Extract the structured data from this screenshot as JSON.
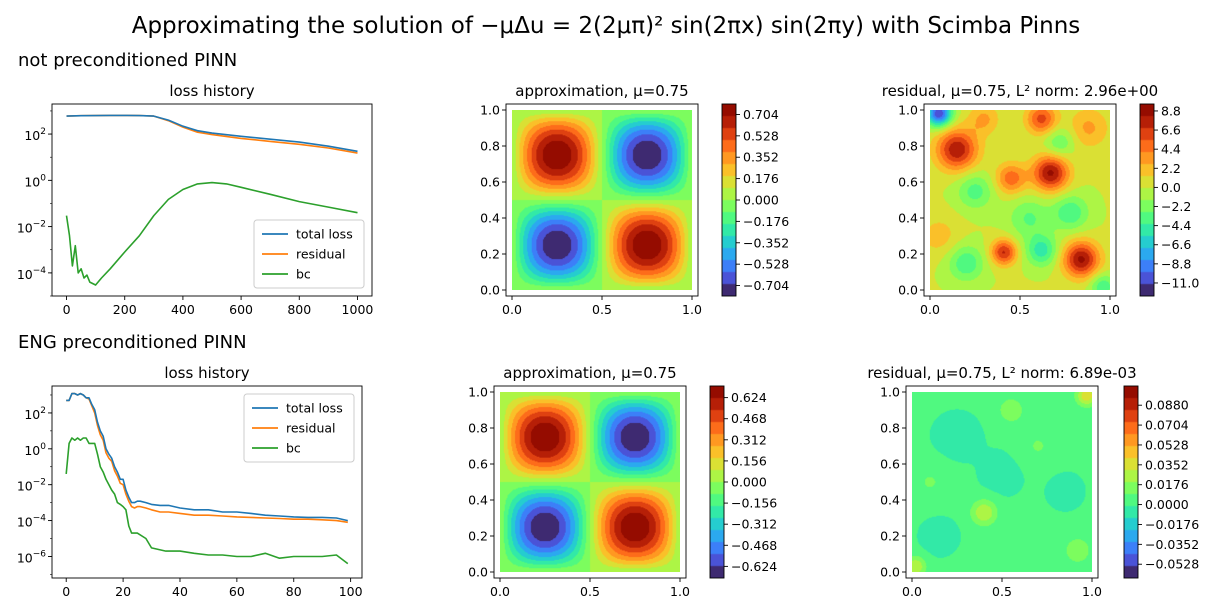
{
  "suptitle": "Approximating the solution of −μΔu = 2(2μπ)² sin(2πx) sin(2πy) with Scimba Pinns",
  "rows": [
    {
      "label": "not preconditioned PINN"
    },
    {
      "label": "ENG preconditioned PINN"
    }
  ],
  "colors": {
    "total_loss": "#1f77b4",
    "residual": "#ff7f0e",
    "bc": "#2ca02c"
  },
  "chart_data": [
    {
      "type": "line",
      "title": "loss history",
      "yscale": "log",
      "xlim": [
        -50,
        1050
      ],
      "ylim_exp": [
        -5,
        3.3
      ],
      "xticks": [
        0,
        200,
        400,
        600,
        800,
        1000
      ],
      "yticks_exp": [
        -4,
        -2,
        0,
        2
      ],
      "legend": "lower-right",
      "series": [
        {
          "name": "total loss",
          "x": [
            0,
            50,
            100,
            150,
            200,
            250,
            300,
            350,
            400,
            450,
            500,
            600,
            700,
            800,
            900,
            1000
          ],
          "y": [
            600,
            620,
            630,
            640,
            640,
            630,
            600,
            400,
            220,
            140,
            110,
            80,
            60,
            45,
            30,
            18
          ]
        },
        {
          "name": "residual",
          "x": [
            0,
            50,
            100,
            150,
            200,
            250,
            300,
            350,
            400,
            450,
            500,
            600,
            700,
            800,
            900,
            1000
          ],
          "y": [
            600,
            620,
            630,
            640,
            640,
            630,
            600,
            380,
            200,
            120,
            95,
            65,
            48,
            36,
            25,
            15
          ]
        },
        {
          "name": "bc",
          "x": [
            0,
            10,
            20,
            30,
            40,
            50,
            60,
            70,
            80,
            100,
            120,
            150,
            200,
            250,
            300,
            350,
            400,
            450,
            500,
            550,
            600,
            700,
            800,
            900,
            1000
          ],
          "y": [
            0.03,
            0.004,
            0.0002,
            0.0015,
            0.0001,
            0.00015,
            6e-05,
            8e-05,
            4e-05,
            3e-05,
            6e-05,
            0.00015,
            0.0008,
            0.004,
            0.03,
            0.15,
            0.4,
            0.7,
            0.8,
            0.7,
            0.5,
            0.25,
            0.12,
            0.07,
            0.04
          ]
        }
      ]
    },
    {
      "type": "heatmap",
      "title": "approximation, μ=0.75",
      "xlim": [
        0,
        1
      ],
      "ylim": [
        0,
        1
      ],
      "xticks": [
        "0.0",
        "0.5",
        "1.0"
      ],
      "yticks": [
        "0.0",
        "0.2",
        "0.4",
        "0.6",
        "0.8",
        "1.0"
      ],
      "amplitude": 0.79,
      "colorbar": {
        "min": -0.79,
        "max": 0.79,
        "ticks": [
          0.704,
          0.528,
          0.352,
          0.176,
          0.0,
          -0.176,
          -0.352,
          -0.528,
          -0.704
        ],
        "labels": [
          "0.704",
          "0.528",
          "0.352",
          "0.176",
          "0.000",
          "−0.176",
          "−0.352",
          "−0.528",
          "−0.704"
        ]
      }
    },
    {
      "type": "heatmap",
      "title": "residual, μ=0.75, L² norm: 2.96e+00",
      "xlim": [
        0,
        1
      ],
      "ylim": [
        0,
        1
      ],
      "xticks": [
        "0.0",
        "0.5",
        "1.0"
      ],
      "yticks": [
        "0.0",
        "0.2",
        "0.4",
        "0.6",
        "0.8",
        "1.0"
      ],
      "blobs": [
        [
          0.15,
          0.78,
          8.0,
          0.08
        ],
        [
          0.67,
          0.65,
          8.5,
          0.07
        ],
        [
          0.84,
          0.17,
          8.5,
          0.07
        ],
        [
          0.41,
          0.21,
          7.0,
          0.05
        ],
        [
          0.45,
          0.62,
          5.0,
          0.06
        ],
        [
          0.62,
          0.95,
          6.0,
          0.06
        ],
        [
          0.88,
          0.9,
          3.0,
          0.08
        ],
        [
          0.3,
          0.95,
          3.0,
          0.06
        ],
        [
          0.05,
          0.3,
          2.0,
          0.08
        ],
        [
          0.55,
          0.4,
          -3.0,
          0.08
        ],
        [
          0.25,
          0.55,
          -3.5,
          0.07
        ],
        [
          0.2,
          0.15,
          -4.0,
          0.07
        ],
        [
          0.62,
          0.22,
          -5.0,
          0.06
        ],
        [
          0.78,
          0.43,
          -4.0,
          0.07
        ],
        [
          0.72,
          0.82,
          -3.0,
          0.06
        ],
        [
          0.05,
          0.98,
          -11.0,
          0.05
        ],
        [
          0.96,
          0.02,
          -4.0,
          0.05
        ]
      ],
      "colorbar": {
        "min": -12.5,
        "max": 9.6,
        "ticks": [
          8.8,
          6.6,
          4.4,
          2.2,
          0.0,
          -2.2,
          -4.4,
          -6.6,
          -8.8,
          -11.0
        ],
        "labels": [
          "8.8",
          "6.6",
          "4.4",
          "2.2",
          "0.0",
          "−2.2",
          "−4.4",
          "−6.6",
          "−8.8",
          "−11.0"
        ]
      }
    },
    {
      "type": "line",
      "title": "loss history",
      "yscale": "log",
      "xlim": [
        -5,
        104
      ],
      "ylim_exp": [
        -7.2,
        3.5
      ],
      "xticks": [
        0,
        20,
        40,
        60,
        80,
        100
      ],
      "yticks_exp": [
        -6,
        -4,
        -2,
        0,
        2
      ],
      "legend": "upper-right",
      "series": [
        {
          "name": "total loss",
          "x": [
            0,
            1,
            2,
            3,
            4,
            5,
            6,
            7,
            8,
            9,
            10,
            11,
            12,
            13,
            14,
            15,
            16,
            17,
            18,
            19,
            20,
            21,
            22,
            23,
            24,
            25,
            26,
            28,
            30,
            33,
            36,
            40,
            45,
            50,
            55,
            60,
            65,
            70,
            75,
            80,
            85,
            90,
            95,
            99
          ],
          "y": [
            500,
            500,
            1200,
            1200,
            1000,
            1200,
            1000,
            700,
            700,
            300,
            150,
            30,
            10,
            5,
            1,
            0.5,
            0.3,
            0.1,
            0.05,
            0.02,
            0.02,
            0.005,
            0.002,
            0.001,
            0.001,
            0.0012,
            0.0012,
            0.001,
            0.0008,
            0.0007,
            0.0007,
            0.0005,
            0.0004,
            0.0004,
            0.0003,
            0.0003,
            0.00025,
            0.0002,
            0.00018,
            0.00016,
            0.00015,
            0.00015,
            0.00014,
            0.0001
          ]
        },
        {
          "name": "residual",
          "x": [
            0,
            1,
            2,
            3,
            4,
            5,
            6,
            7,
            8,
            9,
            10,
            11,
            12,
            13,
            14,
            15,
            16,
            17,
            18,
            19,
            20,
            21,
            22,
            23,
            24,
            25,
            26,
            28,
            30,
            33,
            36,
            40,
            45,
            50,
            55,
            60,
            65,
            70,
            75,
            80,
            85,
            90,
            95,
            99
          ],
          "y": [
            500,
            500,
            1200,
            1200,
            1000,
            1200,
            1000,
            700,
            600,
            250,
            100,
            20,
            6,
            3,
            0.6,
            0.3,
            0.2,
            0.06,
            0.03,
            0.012,
            0.01,
            0.003,
            0.0012,
            0.0006,
            0.0005,
            0.0006,
            0.0006,
            0.0005,
            0.0004,
            0.0003,
            0.0003,
            0.00025,
            0.0002,
            0.0002,
            0.00018,
            0.00016,
            0.00015,
            0.00014,
            0.00013,
            0.00012,
            0.00012,
            0.00011,
            0.0001,
            8e-05
          ]
        },
        {
          "name": "bc",
          "x": [
            0,
            1,
            2,
            3,
            4,
            5,
            6,
            7,
            8,
            9,
            10,
            11,
            12,
            13,
            14,
            15,
            16,
            17,
            18,
            19,
            20,
            21,
            22,
            23,
            25,
            28,
            30,
            35,
            40,
            45,
            50,
            55,
            60,
            65,
            70,
            75,
            80,
            85,
            90,
            95,
            99
          ],
          "y": [
            0.04,
            2,
            4,
            3,
            4,
            3,
            4,
            4,
            2,
            2,
            2,
            0.5,
            0.1,
            0.05,
            0.02,
            0.01,
            0.005,
            0.003,
            0.001,
            0.0008,
            0.0006,
            0.0004,
            5e-05,
            2e-05,
            2e-05,
            1e-05,
            3e-06,
            2e-06,
            2e-06,
            1.5e-06,
            1.2e-06,
            1.2e-06,
            1e-06,
            1e-06,
            1.5e-06,
            8e-07,
            1e-06,
            1e-06,
            1e-06,
            1.2e-06,
            4e-07
          ]
        }
      ]
    },
    {
      "type": "heatmap",
      "title": "approximation, μ=0.75",
      "xlim": [
        0,
        1
      ],
      "ylim": [
        0,
        1
      ],
      "xticks": [
        "0.0",
        "0.5",
        "1.0"
      ],
      "yticks": [
        "0.0",
        "0.2",
        "0.4",
        "0.6",
        "0.8",
        "1.0"
      ],
      "amplitude": 0.71,
      "colorbar": {
        "min": -0.71,
        "max": 0.71,
        "ticks": [
          0.624,
          0.468,
          0.312,
          0.156,
          0.0,
          -0.156,
          -0.312,
          -0.468,
          -0.624
        ],
        "labels": [
          "0.624",
          "0.468",
          "0.312",
          "0.156",
          "0.000",
          "−0.156",
          "−0.312",
          "−0.468",
          "−0.624"
        ]
      }
    },
    {
      "type": "heatmap",
      "title": "residual, μ=0.75, L² norm: 6.89e-03",
      "xlim": [
        0,
        1
      ],
      "ylim": [
        0,
        1
      ],
      "xticks": [
        "0.0",
        "0.5",
        "1.0"
      ],
      "yticks": [
        "0.0",
        "0.2",
        "0.4",
        "0.6",
        "0.8",
        "1.0"
      ],
      "blobs": [
        [
          0.4,
          0.33,
          0.03,
          0.05
        ],
        [
          0.92,
          0.12,
          0.02,
          0.05
        ],
        [
          0.1,
          0.5,
          0.01,
          0.08
        ],
        [
          0.7,
          0.7,
          0.01,
          0.08
        ],
        [
          0.55,
          0.9,
          0.015,
          0.06
        ],
        [
          0.25,
          0.75,
          -0.008,
          0.08
        ],
        [
          0.85,
          0.45,
          -0.008,
          0.06
        ],
        [
          0.5,
          0.55,
          -0.006,
          0.08
        ],
        [
          0.15,
          0.2,
          -0.01,
          0.06
        ],
        [
          0.97,
          0.98,
          0.04,
          0.04
        ],
        [
          0.02,
          0.03,
          0.03,
          0.04
        ]
      ],
      "colorbar": {
        "min": -0.065,
        "max": 0.105,
        "ticks": [
          0.088,
          0.0704,
          0.0528,
          0.0352,
          0.0176,
          0.0,
          -0.0176,
          -0.0352,
          -0.0528
        ],
        "labels": [
          "0.0880",
          "0.0704",
          "0.0528",
          "0.0352",
          "0.0176",
          "0.0000",
          "−0.0176",
          "−0.0352",
          "−0.0528"
        ]
      }
    }
  ]
}
